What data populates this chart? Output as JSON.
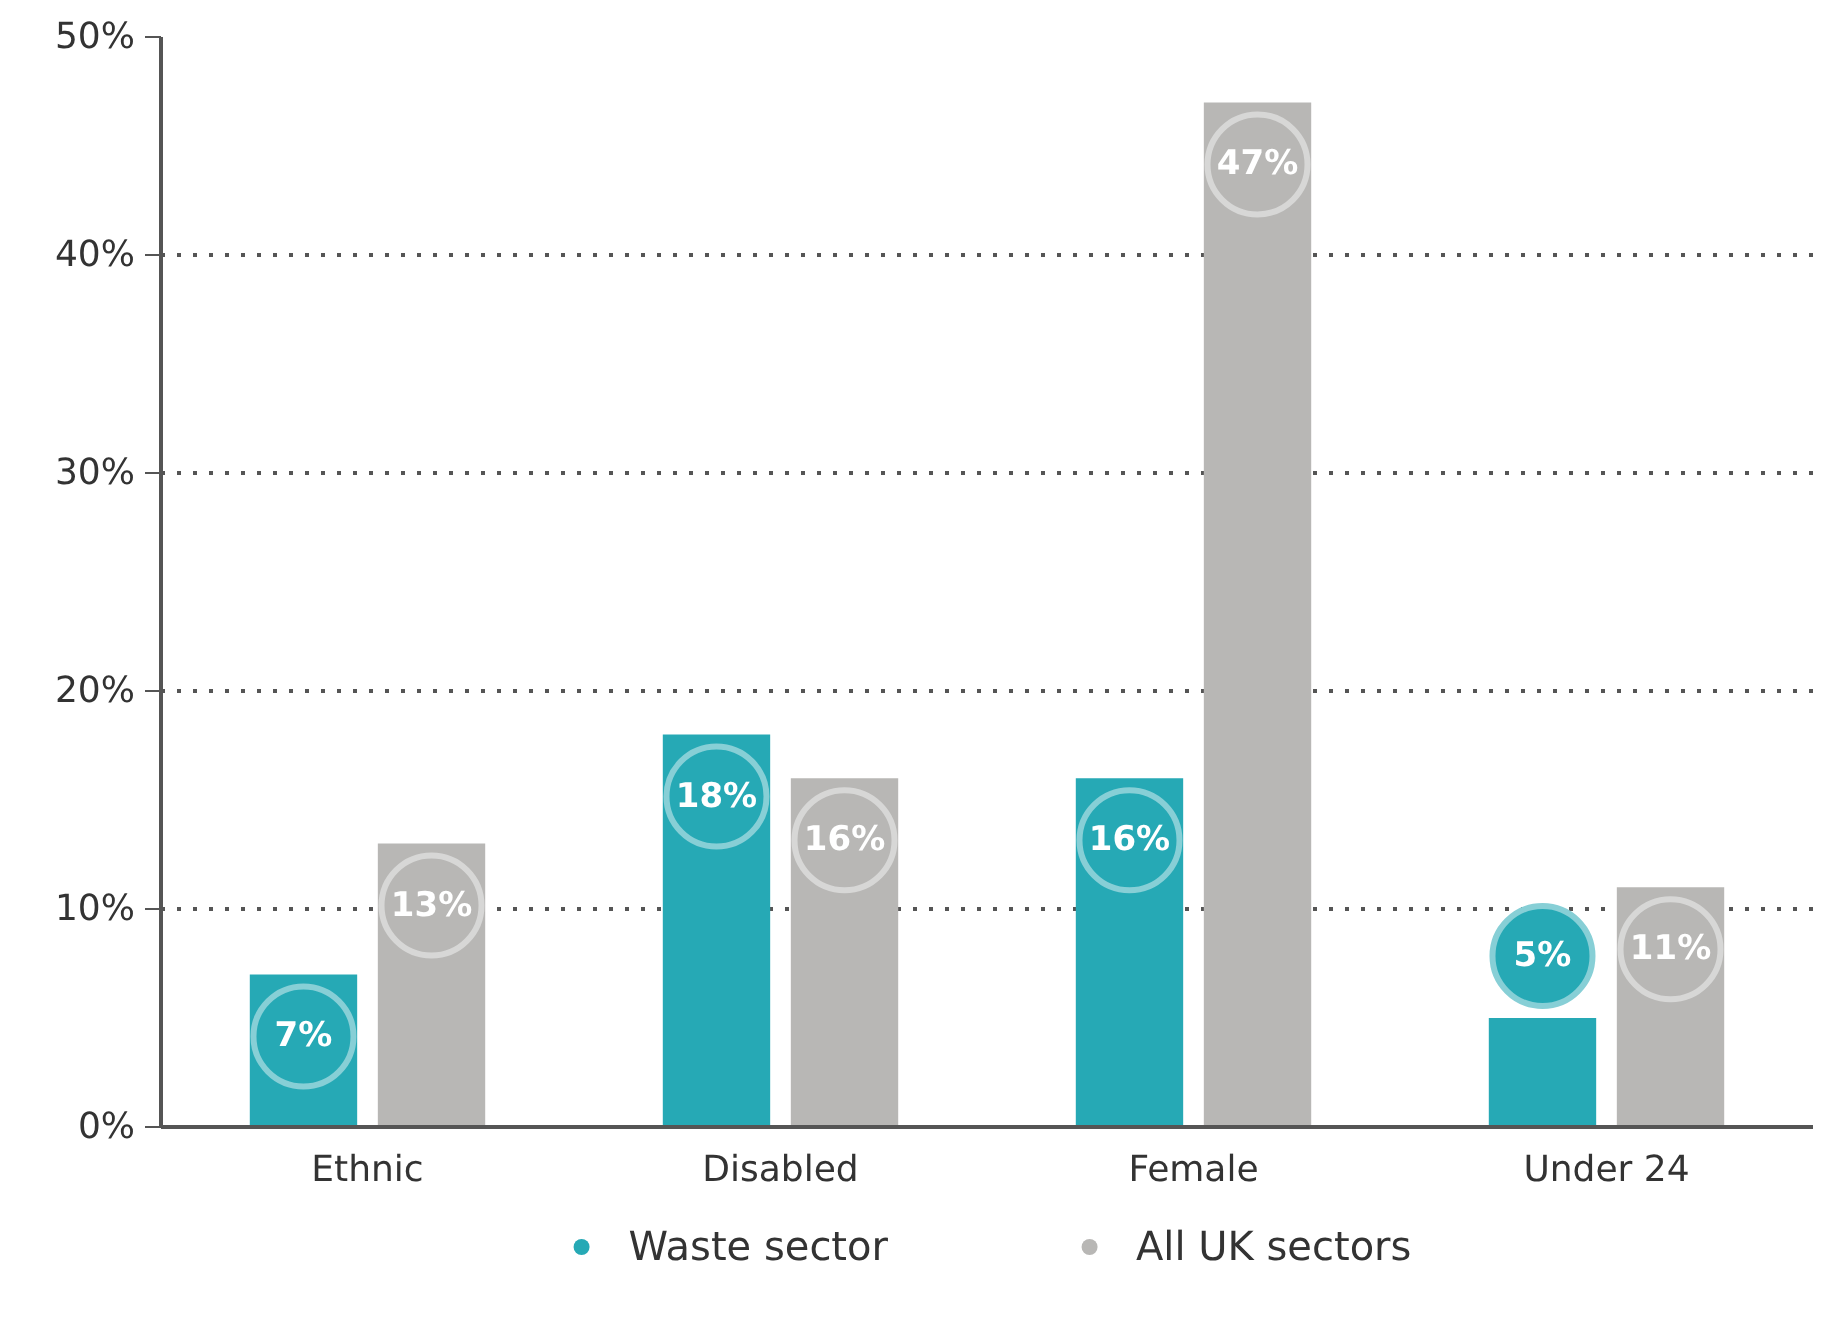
{
  "chart_data": {
    "type": "bar",
    "categories": [
      "Ethnic",
      "Disabled",
      "Female",
      "Under 24"
    ],
    "series": [
      {
        "name": "Waste sector",
        "color": "#26a9b5",
        "values": [
          7,
          18,
          16,
          5
        ],
        "value_labels": [
          "7%",
          "18%",
          "16%",
          "5%"
        ]
      },
      {
        "name": "All UK sectors",
        "color": "#b8b7b5",
        "values": [
          13,
          16,
          47,
          11
        ],
        "value_labels": [
          "13%",
          "16%",
          "47%",
          "11%"
        ]
      }
    ],
    "ylim": [
      0,
      50
    ],
    "yticks": [
      {
        "value": 0,
        "label": "0%"
      },
      {
        "value": 10,
        "label": "10%"
      },
      {
        "value": 20,
        "label": "20%"
      },
      {
        "value": 30,
        "label": "30%"
      },
      {
        "value": 40,
        "label": "40%"
      },
      {
        "value": 50,
        "label": "50%"
      }
    ],
    "grid": "y",
    "legend": "bottom"
  }
}
